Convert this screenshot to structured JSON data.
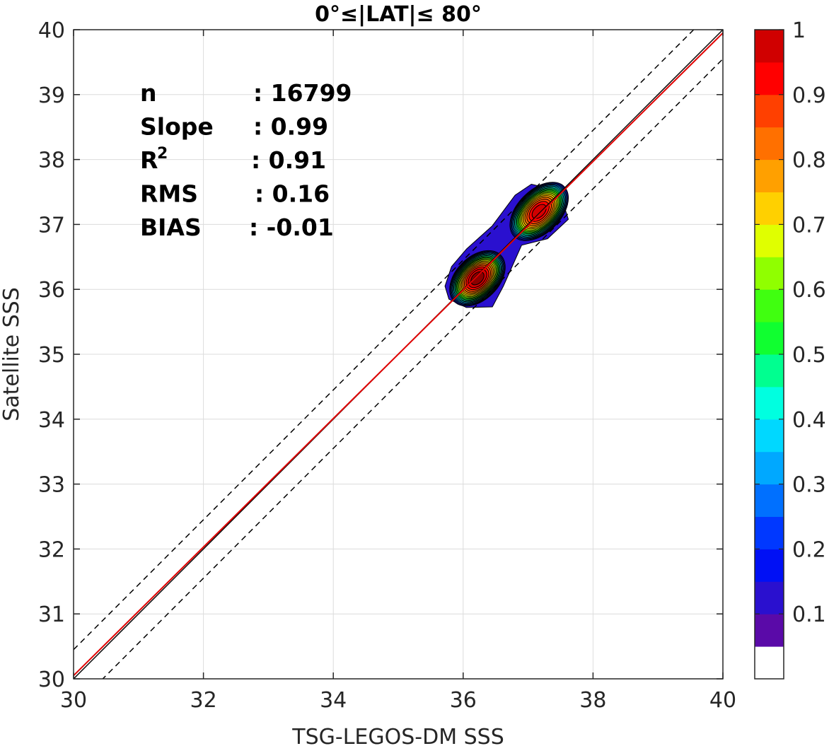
{
  "chart_data": {
    "type": "contour-scatter",
    "title": "0°≤|LAT|≤ 80°",
    "xlabel": "TSG-LEGOS-DM SSS",
    "ylabel": "Satellite SSS",
    "xlim": [
      30,
      40
    ],
    "ylim": [
      30,
      40
    ],
    "xticks": [
      "30",
      "32",
      "34",
      "36",
      "38",
      "40"
    ],
    "yticks": [
      "30",
      "31",
      "32",
      "33",
      "34",
      "35",
      "36",
      "37",
      "38",
      "39",
      "40"
    ],
    "grid": true,
    "stats": [
      {
        "label": "n",
        "value": ": 16799"
      },
      {
        "label": "Slope",
        "value": ": 0.99"
      },
      {
        "label": "R",
        "sup": "2",
        "value": ": 0.91"
      },
      {
        "label": "RMS",
        "value": ": 0.16"
      },
      {
        "label": "BIAS",
        "value": ": -0.01"
      }
    ],
    "lines": {
      "identity": {
        "slope": 1,
        "intercept": 0,
        "color": "#000000"
      },
      "fit": {
        "slope": 0.99,
        "intercept": 0.35,
        "color": "#e00000"
      },
      "upper_bound": {
        "offset": 0.45,
        "style": "dashed"
      },
      "lower_bound": {
        "offset": -0.45,
        "style": "dashed"
      }
    },
    "density_peaks": [
      {
        "x": 36.22,
        "y": 36.17,
        "peak": 1.0
      },
      {
        "x": 37.17,
        "y": 37.2,
        "peak": 0.95
      }
    ],
    "colorbar": {
      "levels": [
        0,
        0.05,
        0.1,
        0.15,
        0.2,
        0.25,
        0.3,
        0.35,
        0.4,
        0.45,
        0.5,
        0.55,
        0.6,
        0.65,
        0.7,
        0.75,
        0.8,
        0.85,
        0.9,
        0.95,
        1.0
      ],
      "colors": [
        "#ffffff",
        "#5a0aa8",
        "#2a10cf",
        "#0010f5",
        "#0038ff",
        "#0070ff",
        "#00a8ff",
        "#00d8ff",
        "#00ffe0",
        "#00ff90",
        "#10ff30",
        "#40ff10",
        "#90ff00",
        "#e0ff00",
        "#ffd000",
        "#ffa000",
        "#ff7000",
        "#ff4000",
        "#ff0000",
        "#d00000",
        "#8b0000"
      ],
      "tick_labels": [
        "0.1",
        "0.2",
        "0.3",
        "0.4",
        "0.5",
        "0.6",
        "0.7",
        "0.8",
        "0.9",
        "1"
      ],
      "tick_values": [
        0.1,
        0.2,
        0.3,
        0.4,
        0.5,
        0.6,
        0.7,
        0.8,
        0.9,
        1.0
      ]
    }
  }
}
